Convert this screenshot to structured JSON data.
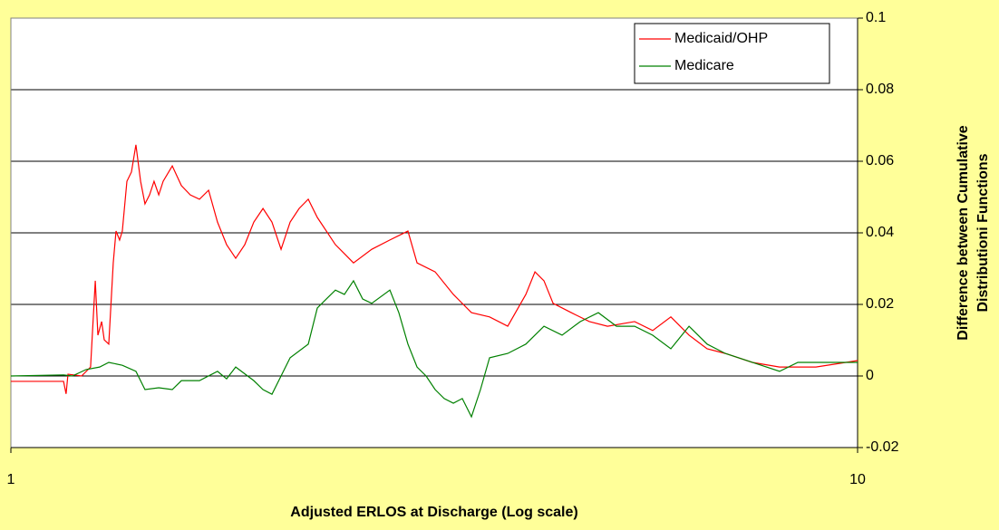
{
  "chart_data": {
    "type": "line",
    "xlabel": "Adjusted ERLOS at Discharge  (Log scale)",
    "ylabel": [
      "Difference between Cumulative",
      "Distributioni Functions"
    ],
    "xscale": "log",
    "xlim": [
      1,
      10
    ],
    "xticks": [
      1,
      10
    ],
    "ylim": [
      -0.02,
      0.1
    ],
    "yticks": [
      -0.02,
      0,
      0.02,
      0.04,
      0.06,
      0.08,
      0.1
    ],
    "grid": true,
    "legend": "upper right",
    "series": [
      {
        "name": "Medicaid/OHP",
        "color": "#ff0000",
        "x": [
          1.0,
          1.154,
          1.162,
          1.168,
          1.212,
          1.242,
          1.258,
          1.267,
          1.28,
          1.289,
          1.305,
          1.321,
          1.331,
          1.344,
          1.354,
          1.371,
          1.388,
          1.405,
          1.423,
          1.44,
          1.458,
          1.476,
          1.495,
          1.513,
          1.551,
          1.59,
          1.629,
          1.67,
          1.712,
          1.754,
          1.798,
          1.843,
          1.889,
          1.936,
          1.985,
          2.034,
          2.085,
          2.137,
          2.19,
          2.245,
          2.301,
          2.417,
          2.539,
          2.668,
          2.803,
          2.944,
          3.018,
          3.17,
          3.331,
          3.499,
          3.676,
          3.862,
          4.057,
          4.159,
          4.262,
          4.369,
          4.59,
          4.822,
          5.066,
          5.453,
          5.728,
          6.018,
          6.323,
          6.642,
          6.978,
          7.511,
          8.088,
          8.928,
          10
        ],
        "values": [
          -0.0015,
          -0.0015,
          -0.005,
          0.0005,
          0,
          0.0025,
          0.0266,
          0.0114,
          0.0152,
          0.0101,
          0.0089,
          0.0316,
          0.0405,
          0.038,
          0.0405,
          0.0544,
          0.057,
          0.0646,
          0.0544,
          0.0481,
          0.0506,
          0.0544,
          0.0506,
          0.0544,
          0.0587,
          0.0532,
          0.0506,
          0.0494,
          0.0519,
          0.043,
          0.0367,
          0.0329,
          0.0367,
          0.043,
          0.0468,
          0.043,
          0.0354,
          0.043,
          0.0468,
          0.0494,
          0.0443,
          0.0367,
          0.0316,
          0.0354,
          0.038,
          0.0405,
          0.0316,
          0.0291,
          0.0228,
          0.0177,
          0.0165,
          0.0139,
          0.0228,
          0.0291,
          0.0266,
          0.0203,
          0.0177,
          0.0152,
          0.0139,
          0.0152,
          0.0127,
          0.0165,
          0.0114,
          0.0076,
          0.0063,
          0.0038,
          0.0025,
          0.0025,
          0.0043
        ]
      },
      {
        "name": "Medicare",
        "color": "#008000",
        "x": [
          1.0,
          1.154,
          1.182,
          1.227,
          1.273,
          1.305,
          1.354,
          1.405,
          1.44,
          1.495,
          1.551,
          1.59,
          1.67,
          1.754,
          1.798,
          1.843,
          1.936,
          1.985,
          2.034,
          2.085,
          2.137,
          2.245,
          2.301,
          2.358,
          2.417,
          2.477,
          2.539,
          2.603,
          2.668,
          2.803,
          2.872,
          2.944,
          3.018,
          3.093,
          3.17,
          3.249,
          3.331,
          3.413,
          3.499,
          3.586,
          3.676,
          3.862,
          4.057,
          4.262,
          4.477,
          4.704,
          4.941,
          5.191,
          5.453,
          5.728,
          6.018,
          6.323,
          6.642,
          6.978,
          7.511,
          8.088,
          8.501,
          8.928,
          10
        ],
        "values": [
          0,
          0.0003,
          0,
          0.0018,
          0.0025,
          0.0038,
          0.003,
          0.0013,
          -0.0038,
          -0.0033,
          -0.0038,
          -0.0013,
          -0.0013,
          0.0013,
          -0.0008,
          0.0025,
          -0.0013,
          -0.0038,
          -0.0051,
          0,
          0.0051,
          0.0089,
          0.019,
          0.0215,
          0.024,
          0.0228,
          0.0266,
          0.0215,
          0.0203,
          0.024,
          0.0177,
          0.0089,
          0.0025,
          0,
          -0.0038,
          -0.0063,
          -0.0076,
          -0.0063,
          -0.0114,
          -0.0038,
          0.0051,
          0.0063,
          0.0089,
          0.0139,
          0.0114,
          0.0152,
          0.0177,
          0.0139,
          0.0139,
          0.0114,
          0.0076,
          0.0139,
          0.0089,
          0.0063,
          0.0038,
          0.0013,
          0.0038,
          0.0038,
          0.0038
        ]
      }
    ]
  }
}
